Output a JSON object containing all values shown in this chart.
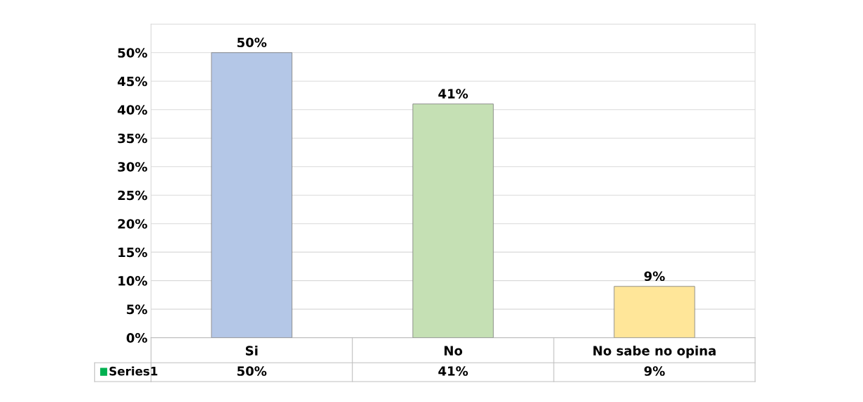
{
  "chart_data": {
    "type": "bar",
    "categories": [
      "Si",
      "No",
      "No sabe no opina"
    ],
    "series": [
      {
        "name": "Series1",
        "colors": [
          "#b4c7e7",
          "#c5e0b4",
          "#ffe699"
        ],
        "values": [
          50,
          41,
          9
        ],
        "value_labels": [
          "50%",
          "41%",
          "9%"
        ]
      }
    ],
    "ylim": [
      0,
      55
    ],
    "yticks": [
      {
        "value": 0,
        "label": "0%"
      },
      {
        "value": 5,
        "label": "5%"
      },
      {
        "value": 10,
        "label": "10%"
      },
      {
        "value": 15,
        "label": "15%"
      },
      {
        "value": 20,
        "label": "20%"
      },
      {
        "value": 25,
        "label": "25%"
      },
      {
        "value": 30,
        "label": "30%"
      },
      {
        "value": 35,
        "label": "35%"
      },
      {
        "value": 40,
        "label": "40%"
      },
      {
        "value": 45,
        "label": "45%"
      },
      {
        "value": 50,
        "label": "50%"
      }
    ],
    "grid": "y",
    "legend": "bottom"
  }
}
